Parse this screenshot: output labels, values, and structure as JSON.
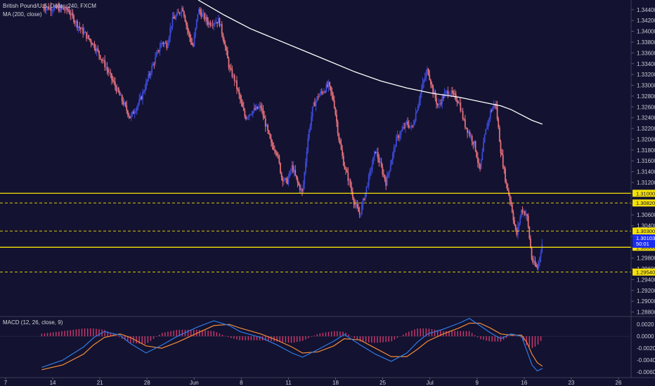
{
  "header": {
    "symbol": "British Pound/U.S. Dollar, 240, FXCM",
    "indicator": "MA (200, close)",
    "macd": "MACD (12, 26, close, 9)"
  },
  "colors": {
    "background": "#131230",
    "bull": "#3b49d6",
    "bear": "#e5707a",
    "ma": "#ffffff",
    "level": "#f5e20a",
    "macd_line": "#2f7be6",
    "signal_line": "#f08a3a",
    "histogram": "#d2386e",
    "price_tag": "#1a2bf0"
  },
  "chart_data": {
    "type": "line",
    "price_axis": {
      "range": [
        1.2873,
        1.3458
      ],
      "ticks": [
        "1.34400",
        "1.34200",
        "1.34000",
        "1.33800",
        "1.33600",
        "1.33400",
        "1.33200",
        "1.33000",
        "1.32800",
        "1.32600",
        "1.32400",
        "1.32200",
        "1.32000",
        "1.31800",
        "1.31600",
        "1.31400",
        "1.31200",
        "1.31000",
        "1.30800",
        "1.30600",
        "1.30400",
        "1.30200",
        "1.30000",
        "1.29800",
        "1.29600",
        "1.29400",
        "1.29200",
        "1.29000",
        "1.28800"
      ]
    },
    "time_axis": {
      "ticks": [
        "7",
        "14",
        "21",
        "28",
        "Jun",
        "8",
        "11",
        "18",
        "25",
        "Jul",
        "9",
        "16",
        "23",
        "26"
      ]
    },
    "levels": [
      {
        "value": 1.31,
        "label": "1.31000",
        "style": "solid"
      },
      {
        "value": 1.3082,
        "label": "1.30820",
        "style": "dashed"
      },
      {
        "value": 1.303,
        "label": "1.30300",
        "style": "dashed"
      },
      {
        "value": 1.3,
        "label": "1.30000",
        "style": "solid"
      },
      {
        "value": 1.2954,
        "label": "1.29540",
        "style": "dashed"
      }
    ],
    "current_price": {
      "label": "1.30103",
      "timer": "50:01"
    },
    "close_path": [
      [
        0,
        1.3445
      ],
      [
        5,
        1.344
      ],
      [
        7,
        1.341
      ],
      [
        10,
        1.3375
      ],
      [
        12,
        1.334
      ],
      [
        14,
        1.33
      ],
      [
        17,
        1.324
      ],
      [
        19,
        1.3275
      ],
      [
        21,
        1.333
      ],
      [
        23,
        1.338
      ],
      [
        24,
        1.3375
      ],
      [
        25,
        1.342
      ],
      [
        26,
        1.343
      ],
      [
        27,
        1.3445
      ],
      [
        28,
        1.34
      ],
      [
        29,
        1.337
      ],
      [
        30,
        1.344
      ],
      [
        32,
        1.3415
      ],
      [
        34,
        1.342
      ],
      [
        35,
        1.338
      ],
      [
        36,
        1.333
      ],
      [
        37,
        1.331
      ],
      [
        38,
        1.3275
      ],
      [
        39,
        1.324
      ],
      [
        40,
        1.325
      ],
      [
        42,
        1.326
      ],
      [
        44,
        1.319
      ],
      [
        45,
        1.318
      ],
      [
        46,
        1.313
      ],
      [
        47,
        1.312
      ],
      [
        48,
        1.315
      ],
      [
        49,
        1.312
      ],
      [
        50,
        1.31
      ],
      [
        51,
        1.32
      ],
      [
        52,
        1.326
      ],
      [
        53,
        1.328
      ],
      [
        55,
        1.33
      ],
      [
        56,
        1.327
      ],
      [
        57,
        1.32
      ],
      [
        58,
        1.315
      ],
      [
        59,
        1.312
      ],
      [
        60,
        1.308
      ],
      [
        61,
        1.306
      ],
      [
        62,
        1.31
      ],
      [
        63,
        1.314
      ],
      [
        64,
        1.318
      ],
      [
        65,
        1.315
      ],
      [
        66,
        1.312
      ],
      [
        67,
        1.316
      ],
      [
        68,
        1.32
      ],
      [
        70,
        1.323
      ],
      [
        71,
        1.322
      ],
      [
        72,
        1.326
      ],
      [
        73,
        1.33
      ],
      [
        74,
        1.333
      ],
      [
        75,
        1.329
      ],
      [
        76,
        1.326
      ],
      [
        77,
        1.328
      ],
      [
        78,
        1.329
      ],
      [
        80,
        1.327
      ],
      [
        81,
        1.323
      ],
      [
        83,
        1.319
      ],
      [
        84,
        1.314
      ],
      [
        85,
        1.321
      ],
      [
        86,
        1.325
      ],
      [
        87,
        1.327
      ],
      [
        88,
        1.318
      ],
      [
        89,
        1.312
      ],
      [
        90,
        1.308
      ],
      [
        91,
        1.302
      ],
      [
        92,
        1.307
      ],
      [
        93,
        1.306
      ],
      [
        94,
        1.2975
      ],
      [
        95,
        1.296
      ],
      [
        96,
        1.301
      ]
    ],
    "ma_200": [
      [
        30,
        1.3458
      ],
      [
        35,
        1.343
      ],
      [
        40,
        1.3405
      ],
      [
        45,
        1.3385
      ],
      [
        50,
        1.3365
      ],
      [
        55,
        1.3345
      ],
      [
        60,
        1.3325
      ],
      [
        65,
        1.3308
      ],
      [
        70,
        1.3295
      ],
      [
        75,
        1.3285
      ],
      [
        80,
        1.3278
      ],
      [
        85,
        1.3268
      ],
      [
        88,
        1.3262
      ],
      [
        90,
        1.3255
      ],
      [
        92,
        1.3245
      ],
      [
        94,
        1.3235
      ],
      [
        96,
        1.3228
      ]
    ],
    "macd": {
      "axis": {
        "range": [
          -0.0068,
          0.0032
        ],
        "ticks": [
          "0.0020",
          "0.0000",
          "-0.0020",
          "-0.0040",
          "-0.0060"
        ]
      },
      "macd_line": [
        [
          0,
          -0.0052
        ],
        [
          4,
          -0.004
        ],
        [
          8,
          -0.0018
        ],
        [
          10,
          -0.0002
        ],
        [
          12,
          0.0008
        ],
        [
          15,
          0.0002
        ],
        [
          17,
          -0.0012
        ],
        [
          20,
          -0.0028
        ],
        [
          23,
          -0.0015
        ],
        [
          26,
          0.0
        ],
        [
          30,
          0.0016
        ],
        [
          33,
          0.0026
        ],
        [
          36,
          0.0018
        ],
        [
          38,
          0.0008
        ],
        [
          42,
          -0.0002
        ],
        [
          45,
          -0.0014
        ],
        [
          48,
          -0.0028
        ],
        [
          50,
          -0.0035
        ],
        [
          53,
          -0.0022
        ],
        [
          56,
          -0.0008
        ],
        [
          58,
          0.0003
        ],
        [
          61,
          -0.0014
        ],
        [
          64,
          -0.003
        ],
        [
          67,
          -0.0042
        ],
        [
          70,
          -0.0028
        ],
        [
          72,
          -0.001
        ],
        [
          74,
          0.0004
        ],
        [
          77,
          0.0012
        ],
        [
          80,
          0.0022
        ],
        [
          82,
          0.003
        ],
        [
          84,
          0.0018
        ],
        [
          86,
          0.0006
        ],
        [
          88,
          -0.0004
        ],
        [
          90,
          0.0004
        ],
        [
          92,
          0.0
        ],
        [
          93,
          -0.0024
        ],
        [
          94,
          -0.0048
        ],
        [
          95,
          -0.0058
        ],
        [
          96,
          -0.0054
        ]
      ],
      "signal_line": [
        [
          0,
          -0.0056
        ],
        [
          4,
          -0.0048
        ],
        [
          8,
          -0.003
        ],
        [
          10,
          -0.0014
        ],
        [
          12,
          -0.0002
        ],
        [
          15,
          0.0004
        ],
        [
          17,
          -0.0002
        ],
        [
          20,
          -0.0016
        ],
        [
          23,
          -0.002
        ],
        [
          26,
          -0.001
        ],
        [
          30,
          0.0006
        ],
        [
          33,
          0.0018
        ],
        [
          36,
          0.002
        ],
        [
          38,
          0.0014
        ],
        [
          42,
          0.0004
        ],
        [
          45,
          -0.0006
        ],
        [
          48,
          -0.0018
        ],
        [
          50,
          -0.0028
        ],
        [
          53,
          -0.0026
        ],
        [
          56,
          -0.0016
        ],
        [
          58,
          -0.0004
        ],
        [
          61,
          -0.0006
        ],
        [
          64,
          -0.002
        ],
        [
          67,
          -0.0034
        ],
        [
          70,
          -0.0034
        ],
        [
          72,
          -0.0022
        ],
        [
          74,
          -0.0008
        ],
        [
          77,
          0.0004
        ],
        [
          80,
          0.0014
        ],
        [
          82,
          0.0022
        ],
        [
          84,
          0.0022
        ],
        [
          86,
          0.0014
        ],
        [
          88,
          0.0004
        ],
        [
          90,
          0.0002
        ],
        [
          92,
          0.0002
        ],
        [
          93,
          -0.001
        ],
        [
          94,
          -0.003
        ],
        [
          95,
          -0.0044
        ],
        [
          96,
          -0.005
        ]
      ]
    }
  }
}
